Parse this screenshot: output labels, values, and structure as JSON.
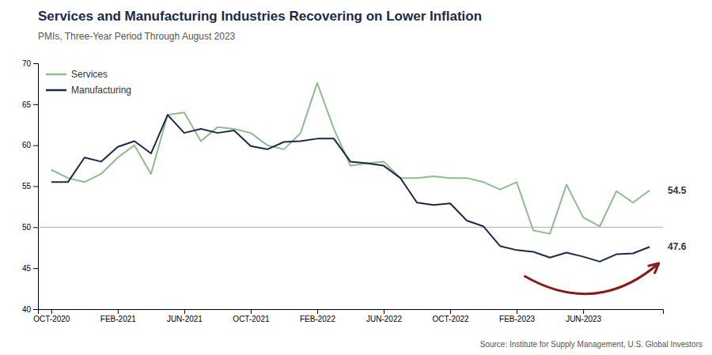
{
  "chart_data": {
    "type": "line",
    "title": "Services and Manufacturing Industries Recovering on Lower Inflation",
    "subtitle": "PMIs, Three-Year Period Through August 2023",
    "source": "Source: Institute for Supply Management, U.S. Global Investors",
    "categories": [
      "OCT-2020",
      null,
      null,
      null,
      "FEB-2021",
      null,
      null,
      null,
      "JUN-2021",
      null,
      null,
      null,
      "OCT-2021",
      null,
      null,
      null,
      "FEB-2022",
      null,
      null,
      null,
      "JUN-2022",
      null,
      null,
      null,
      "OCT-2022",
      null,
      null,
      null,
      "FEB-2023",
      null,
      null,
      null,
      "JUN-2023",
      null,
      null,
      null,
      null
    ],
    "series": [
      {
        "name": "Services",
        "color": "#8fbc8f",
        "end_label": "54.5",
        "values": [
          57.0,
          56.0,
          55.5,
          56.5,
          58.5,
          60.0,
          56.5,
          63.7,
          64.0,
          60.5,
          62.2,
          62.0,
          61.5,
          60.0,
          59.5,
          61.5,
          67.6,
          62.0,
          57.5,
          57.8,
          58.0,
          56.0,
          56.0,
          56.2,
          56.0,
          56.0,
          55.5,
          54.6,
          55.5,
          49.6,
          49.2,
          55.2,
          51.2,
          50.1,
          54.4,
          53.0,
          54.5
        ]
      },
      {
        "name": "Manufacturing",
        "color": "#1b2a4a",
        "end_label": "47.6",
        "values": [
          55.5,
          55.5,
          58.5,
          58.0,
          59.8,
          60.5,
          59.0,
          63.7,
          61.5,
          62.0,
          61.5,
          61.8,
          59.9,
          59.5,
          60.4,
          60.5,
          60.8,
          60.8,
          58.0,
          57.8,
          57.5,
          56.0,
          53.0,
          52.7,
          52.9,
          50.8,
          50.1,
          47.7,
          47.2,
          47.0,
          46.3,
          46.9,
          46.4,
          45.8,
          46.7,
          46.8,
          47.6
        ]
      }
    ],
    "ylim": [
      40,
      70
    ],
    "yticks": [
      40,
      45,
      50,
      55,
      60,
      65,
      70
    ],
    "grid": false,
    "legend": "top-left",
    "reference_line": {
      "value": 50,
      "color": "#aaaaaa"
    },
    "arrow": {
      "x": [
        28.5,
        36.5
      ],
      "y": [
        44.0,
        45.5
      ],
      "color": "#8b1a1a"
    }
  }
}
